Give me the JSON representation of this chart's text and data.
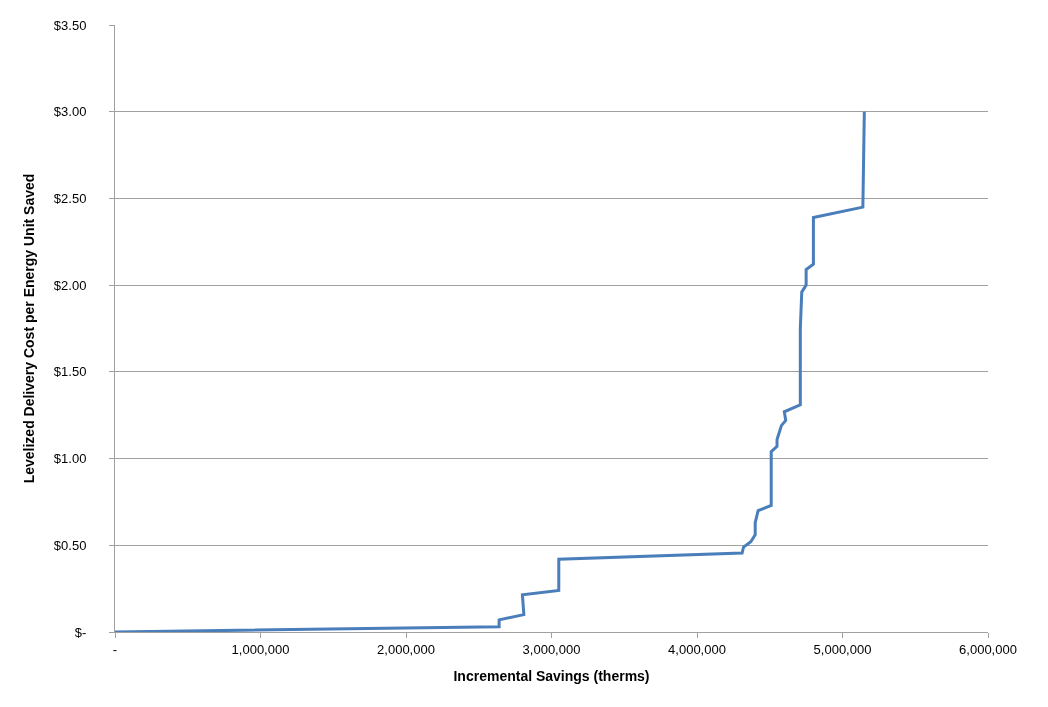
{
  "chart_data": {
    "type": "line",
    "xlabel": "Incremental Savings (therms)",
    "ylabel": "Levelized Delivery Cost per Energy Unit Saved",
    "series": [
      {
        "color": "#4a7ebb",
        "x": [
          0,
          2640000,
          2640000,
          2810000,
          2800000,
          3050000,
          3050000,
          4310000,
          4320000,
          4370000,
          4400000,
          4400000,
          4420000,
          4510000,
          4510000,
          4550000,
          4550000,
          4580000,
          4610000,
          4600000,
          4710000,
          4710000,
          4720000,
          4750000,
          4750000,
          4800000,
          4800000,
          5140000,
          5150000
        ],
        "values": [
          0,
          0.03,
          0.07,
          0.1,
          0.215,
          0.24,
          0.42,
          0.455,
          0.49,
          0.52,
          0.56,
          0.63,
          0.7,
          0.73,
          1.04,
          1.07,
          1.11,
          1.19,
          1.22,
          1.27,
          1.31,
          1.75,
          1.96,
          2.0,
          2.09,
          2.12,
          2.39,
          2.45,
          3.0
        ]
      }
    ],
    "xlim": [
      0,
      6000000
    ],
    "ylim": [
      0,
      3.5
    ],
    "xticks": [
      {
        "value": 0,
        "label": "-"
      },
      {
        "value": 1000000,
        "label": "1,000,000"
      },
      {
        "value": 2000000,
        "label": "2,000,000"
      },
      {
        "value": 3000000,
        "label": "3,000,000"
      },
      {
        "value": 4000000,
        "label": "4,000,000"
      },
      {
        "value": 5000000,
        "label": "5,000,000"
      },
      {
        "value": 6000000,
        "label": "6,000,000"
      }
    ],
    "yticks": [
      {
        "value": 0,
        "label": "$-"
      },
      {
        "value": 0.5,
        "label": "$0.50"
      },
      {
        "value": 1,
        "label": "$1.00"
      },
      {
        "value": 1.5,
        "label": "$1.50"
      },
      {
        "value": 2,
        "label": "$2.00"
      },
      {
        "value": 2.5,
        "label": "$2.50"
      },
      {
        "value": 3,
        "label": "$3.00"
      },
      {
        "value": 3.5,
        "label": "$3.50"
      }
    ],
    "grid": "y",
    "marker": "none",
    "line_style": "solid"
  }
}
